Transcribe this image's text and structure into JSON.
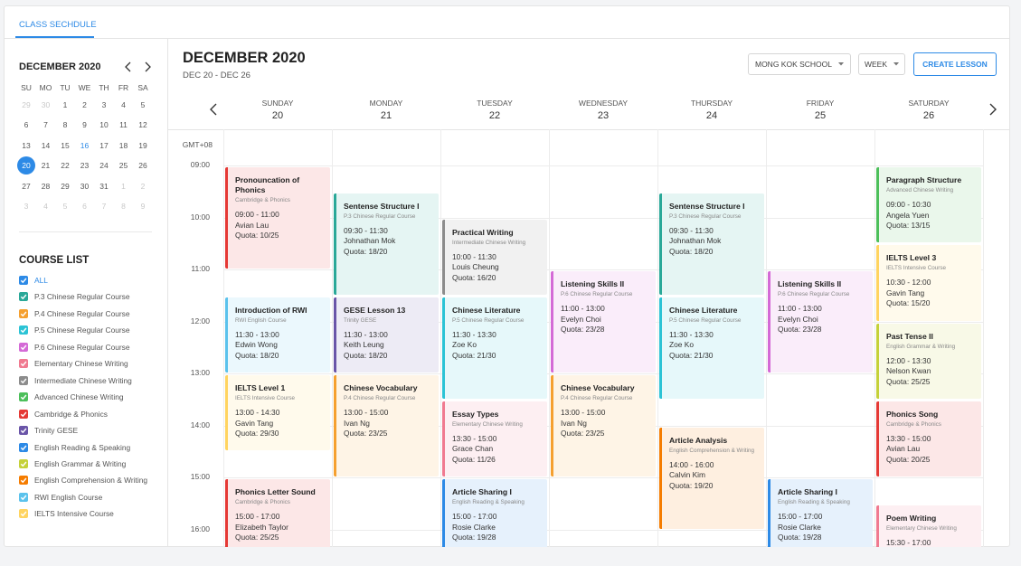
{
  "tab": "CLASS SECHDULE",
  "mini_calendar": {
    "title": "DECEMBER 2020",
    "weekdays": [
      "SU",
      "MO",
      "TU",
      "WE",
      "TH",
      "FR",
      "SA"
    ],
    "weeks": [
      [
        {
          "label": "29",
          "muted": true
        },
        {
          "label": "30",
          "muted": true
        },
        "1",
        "2",
        "3",
        "4",
        "5"
      ],
      [
        "6",
        "7",
        "8",
        "9",
        "10",
        "11",
        "12"
      ],
      [
        "13",
        "14",
        "15",
        {
          "label": "16",
          "today": true
        },
        "17",
        "18",
        "19"
      ],
      [
        {
          "label": "20",
          "selected": true
        },
        "21",
        "22",
        "23",
        "24",
        "25",
        "26"
      ],
      [
        "27",
        "28",
        "29",
        "30",
        "31",
        {
          "label": "1",
          "muted": true
        },
        {
          "label": "2",
          "muted": true
        }
      ],
      [
        {
          "label": "3",
          "muted": true
        },
        {
          "label": "4",
          "muted": true
        },
        {
          "label": "5",
          "muted": true
        },
        {
          "label": "6",
          "muted": true
        },
        {
          "label": "7",
          "muted": true
        },
        {
          "label": "8",
          "muted": true
        },
        {
          "label": "9",
          "muted": true
        }
      ]
    ]
  },
  "course_list": {
    "title": "COURSE LIST",
    "items": [
      {
        "label": "ALL",
        "color": "#2d8ae6"
      },
      {
        "label": "P.3 Chinese Regular Course",
        "color": "#2aa898"
      },
      {
        "label": "P.4 Chinese Regular Course",
        "color": "#f5a030"
      },
      {
        "label": "P.5 Chinese Regular Course",
        "color": "#2cc3d5"
      },
      {
        "label": "P.6 Chinese Regular Course",
        "color": "#d46ad6"
      },
      {
        "label": "Elementary Chinese Writing",
        "color": "#f07a90"
      },
      {
        "label": "Intermediate Chinese Writing",
        "color": "#8c8c8c"
      },
      {
        "label": "Advanced Chinese Writing",
        "color": "#4cbf5a"
      },
      {
        "label": "Cambridge & Phonics",
        "color": "#e53935"
      },
      {
        "label": "Trinity GESE",
        "color": "#6a55a8"
      },
      {
        "label": "English Reading & Speaking",
        "color": "#2d8ae6"
      },
      {
        "label": "English Grammar & Writing",
        "color": "#c5d13a"
      },
      {
        "label": "English Comprehension & Writing",
        "color": "#f57c00"
      },
      {
        "label": "RWI English Course",
        "color": "#5bc2ec"
      },
      {
        "label": "IELTS Intensive Course",
        "color": "#ffd460"
      }
    ]
  },
  "header": {
    "title": "DECEMBER 2020",
    "range": "DEC 20 - DEC 26",
    "school": "MONG KOK SCHOOL",
    "view": "WEEK",
    "create_button": "CREATE LESSON"
  },
  "timezone": "GMT+08",
  "hours": [
    "09:00",
    "10:00",
    "11:00",
    "12:00",
    "13:00",
    "14:00",
    "15:00",
    "16:00"
  ],
  "days": [
    {
      "name": "SUNDAY",
      "date": "20",
      "events": [
        {
          "title": "Pronouncation of Phonics",
          "course": "Cambridge & Phonics",
          "time": "09:00 - 11:00",
          "teacher": "Avian Lau",
          "quota": "Quota: 10/25"
        },
        {
          "title": "Introduction of RWI",
          "course": "RWI English Course",
          "time": "11:30 - 13:00",
          "teacher": "Edwin Wong",
          "quota": "Quota: 18/20"
        },
        {
          "title": "IELTS Level 1",
          "course": "IELTS Intensive Course",
          "time": "13:00 - 14:30",
          "teacher": "Gavin Tang",
          "quota": "Quota: 29/30"
        },
        {
          "title": "Phonics Letter Sound",
          "course": "Cambridge & Phonics",
          "time": "15:00 - 17:00",
          "teacher": "Elizabeth Taylor",
          "quota": "Quota: 25/25"
        }
      ]
    },
    {
      "name": "MONDAY",
      "date": "21",
      "events": [
        {
          "title": "Sentense Structure I",
          "course": "P.3 Chinese Regular Course",
          "time": "09:30 - 11:30",
          "teacher": "Johnathan Mok",
          "quota": "Quota: 18/20"
        },
        {
          "title": "GESE Lesson 13",
          "course": "Trinity GESE",
          "time": "11:30 - 13:00",
          "teacher": "Keith Leung",
          "quota": "Quota: 18/20"
        },
        {
          "title": "Chinese Vocabulary",
          "course": "P.4 Chinese Regular Course",
          "time": "13:00 - 15:00",
          "teacher": "Ivan Ng",
          "quota": "Quota: 23/25"
        }
      ]
    },
    {
      "name": "TUESDAY",
      "date": "22",
      "events": [
        {
          "title": "Practical Writing",
          "course": "Intermediate Chinese Writing",
          "time": "10:00 - 11:30",
          "teacher": "Louis Cheung",
          "quota": "Quota: 16/20"
        },
        {
          "title": "Chinese Literature",
          "course": "P.5 Chinese Regular Course",
          "time": "11:30 - 13:30",
          "teacher": "Zoe Ko",
          "quota": "Quota: 21/30"
        },
        {
          "title": "Essay Types",
          "course": "Elementary Chinese Writing",
          "time": "13:30 - 15:00",
          "teacher": "Grace Chan",
          "quota": "Quota: 11/26"
        },
        {
          "title": "Article Sharing I",
          "course": "English Reading & Speaking",
          "time": "15:00 - 17:00",
          "teacher": "Rosie Clarke",
          "quota": "Quota: 19/28"
        }
      ]
    },
    {
      "name": "WEDNESDAY",
      "date": "23",
      "events": [
        {
          "title": "Listening Skills II",
          "course": "P.6 Chinese Regular Course",
          "time": "11:00 - 13:00",
          "teacher": "Evelyn Choi",
          "quota": "Quota: 23/28"
        },
        {
          "title": "Chinese Vocabulary",
          "course": "P.4 Chinese Regular Course",
          "time": "13:00 - 15:00",
          "teacher": "Ivan Ng",
          "quota": "Quota: 23/25"
        }
      ]
    },
    {
      "name": "THURSDAY",
      "date": "24",
      "events": [
        {
          "title": "Sentense Structure I",
          "course": "P.3 Chinese Regular Course",
          "time": "09:30 - 11:30",
          "teacher": "Johnathan Mok",
          "quota": "Quota: 18/20"
        },
        {
          "title": "Chinese Literature",
          "course": "P.5 Chinese Regular Course",
          "time": "11:30 - 13:30",
          "teacher": "Zoe Ko",
          "quota": "Quota: 21/30"
        },
        {
          "title": "Article Analysis",
          "course": "English Comprehension & Writing",
          "time": "14:00 - 16:00",
          "teacher": "Calvin Kim",
          "quota": "Quota: 19/20"
        }
      ]
    },
    {
      "name": "FRIDAY",
      "date": "25",
      "events": [
        {
          "title": "Listening Skills II",
          "course": "P.6 Chinese Regular Course",
          "time": "11:00 - 13:00",
          "teacher": "Evelyn Choi",
          "quota": "Quota: 23/28"
        },
        {
          "title": "Article Sharing I",
          "course": "English Reading & Speaking",
          "time": "15:00 - 17:00",
          "teacher": "Rosie Clarke",
          "quota": "Quota: 19/28"
        }
      ]
    },
    {
      "name": "SATURDAY",
      "date": "26",
      "events": [
        {
          "title": "Paragraph Structure",
          "course": "Advanced Chinese Writing",
          "time": "09:00 - 10:30",
          "teacher": "Angela Yuen",
          "quota": "Quota: 13/15"
        },
        {
          "title": "IELTS Level 3",
          "course": "IELTS Intensive Course",
          "time": "10:30 - 12:00",
          "teacher": "Gavin Tang",
          "quota": "Quota: 15/20"
        },
        {
          "title": "Past Tense II",
          "course": "English Grammar & Writing",
          "time": "12:00 - 13:30",
          "teacher": "Nelson Kwan",
          "quota": "Quota: 25/25"
        },
        {
          "title": "Phonics Song",
          "course": "Cambridge & Phonics",
          "time": "13:30 - 15:00",
          "teacher": "Avian Lau",
          "quota": "Quota: 20/25"
        },
        {
          "title": "Poem Writing",
          "course": "Elementary Chinese Writing",
          "time": "15:30 - 17:00"
        }
      ]
    }
  ]
}
